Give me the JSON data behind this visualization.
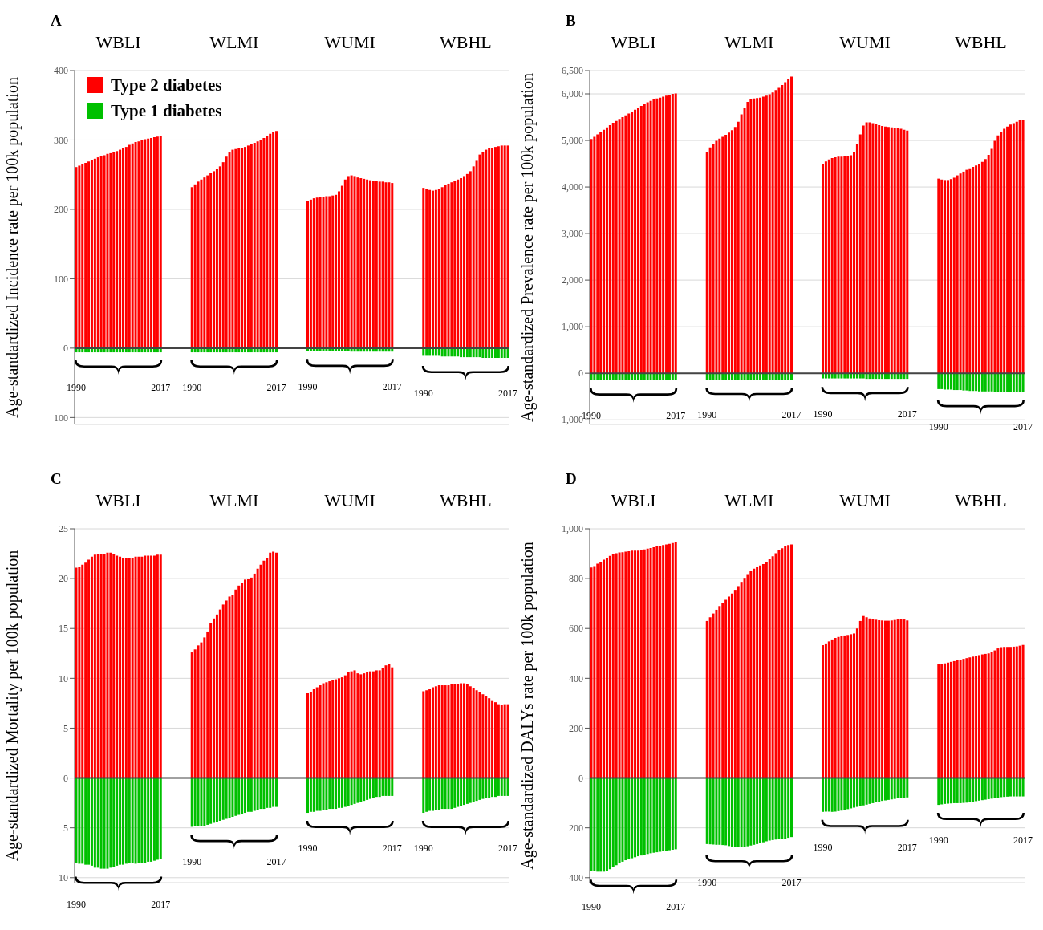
{
  "chart_data": [
    {
      "type": "bar",
      "title": "A",
      "ylabel": "Age-standardized Incidence rate per 100k population",
      "stacked": true,
      "grid": "y",
      "legend": "top left",
      "annotations": [
        "WBLI",
        "WLMI",
        "WUMI",
        "WBHL"
      ],
      "categories": [
        "1990",
        null,
        null,
        null,
        null,
        null,
        null,
        null,
        null,
        null,
        null,
        null,
        null,
        null,
        null,
        null,
        null,
        null,
        null,
        null,
        null,
        null,
        null,
        null,
        null,
        null,
        null,
        "2017",
        null,
        null,
        null,
        null,
        null,
        null,
        null,
        null,
        null,
        "1990",
        null,
        null,
        null,
        null,
        null,
        null,
        null,
        null,
        null,
        null,
        null,
        null,
        null,
        null,
        null,
        null,
        null,
        null,
        null,
        null,
        null,
        null,
        null,
        null,
        null,
        null,
        "2017",
        null,
        null,
        null,
        null,
        null,
        null,
        null,
        null,
        null,
        "1990",
        null,
        null,
        null,
        null,
        null,
        null,
        null,
        null,
        null,
        null,
        null,
        null,
        null,
        null,
        null,
        null,
        null,
        null,
        null,
        null,
        null,
        null,
        null,
        null,
        null,
        null,
        "2017",
        null,
        null,
        null,
        null,
        null,
        null,
        null,
        null,
        null,
        "1990",
        null,
        null,
        null,
        null,
        null,
        null,
        null,
        null,
        null,
        null,
        null,
        null,
        null,
        null,
        null,
        null,
        null,
        null,
        null,
        null,
        null,
        null,
        null,
        null,
        null,
        null,
        "2017"
      ],
      "series": [
        {
          "name": "Type 2 diabetes",
          "color": "#ff0000",
          "values": [
            261,
            263,
            265,
            267,
            269,
            271,
            273,
            275,
            277,
            278,
            280,
            281,
            283,
            284,
            286,
            288,
            290,
            293,
            295,
            297,
            298,
            300,
            301,
            302,
            303,
            304,
            305,
            306,
            null,
            null,
            null,
            null,
            null,
            null,
            null,
            null,
            null,
            232,
            236,
            240,
            243,
            246,
            249,
            252,
            255,
            258,
            262,
            268,
            276,
            282,
            286,
            287,
            288,
            289,
            290,
            292,
            294,
            296,
            298,
            300,
            303,
            306,
            309,
            311,
            313,
            null,
            null,
            null,
            null,
            null,
            null,
            null,
            null,
            null,
            212,
            214,
            216,
            217,
            218,
            218,
            219,
            219,
            220,
            221,
            226,
            234,
            243,
            248,
            249,
            248,
            246,
            245,
            244,
            243,
            242,
            241,
            241,
            240,
            240,
            239,
            239,
            238,
            null,
            null,
            null,
            null,
            null,
            null,
            null,
            null,
            null,
            231,
            229,
            228,
            227,
            228,
            230,
            232,
            235,
            237,
            239,
            241,
            243,
            245,
            248,
            251,
            255,
            262,
            270,
            279,
            283,
            286,
            288,
            289,
            290,
            291,
            292,
            292,
            292
          ]
        },
        {
          "name": "Type 1 diabetes",
          "color": "#00c000",
          "values": [
            -6,
            -6,
            -6,
            -6,
            -6,
            -6,
            -6,
            -6,
            -6,
            -6,
            -6,
            -6,
            -6,
            -6,
            -6,
            -6,
            -6,
            -6,
            -6,
            -6,
            -6,
            -6,
            -6,
            -6,
            -6,
            -6,
            -6,
            -6,
            null,
            null,
            null,
            null,
            null,
            null,
            null,
            null,
            null,
            -6,
            -6,
            -6,
            -6,
            -6,
            -6,
            -6,
            -6,
            -6,
            -6,
            -6,
            -6,
            -6,
            -6,
            -6,
            -6,
            -6,
            -6,
            -6,
            -6,
            -6,
            -6,
            -6,
            -6,
            -6,
            -6,
            -6,
            -6,
            null,
            null,
            null,
            null,
            null,
            null,
            null,
            null,
            null,
            -4,
            -4,
            -4,
            -4,
            -4,
            -4,
            -4,
            -4,
            -4,
            -4,
            -4,
            -4,
            -4,
            -4,
            -5,
            -5,
            -5,
            -5,
            -5,
            -5,
            -5,
            -5,
            -5,
            -5,
            -5,
            -5,
            -5,
            -5,
            null,
            null,
            null,
            null,
            null,
            null,
            null,
            null,
            null,
            -11,
            -11,
            -11,
            -11,
            -11,
            -11,
            -12,
            -12,
            -12,
            -12,
            -12,
            -12,
            -13,
            -13,
            -13,
            -13,
            -13,
            -13,
            -13,
            -14,
            -14,
            -14,
            -14,
            -14,
            -14,
            -14,
            -14,
            -14
          ]
        }
      ],
      "ylim": [
        -110,
        400
      ],
      "yticks": [
        {
          "value": -100,
          "label": "100"
        },
        0,
        100,
        200,
        300,
        400
      ],
      "ref_lines": [
        {
          "axis": "y",
          "value": 0
        }
      ]
    },
    {
      "type": "bar",
      "title": "B",
      "ylabel": "Age-standardized Prevalence rate per 100k population",
      "stacked": true,
      "grid": "y",
      "annotations": [
        "WBLI",
        "WLMI",
        "WUMI",
        "WBHL"
      ],
      "categories": [
        "1990",
        null,
        null,
        null,
        null,
        null,
        null,
        null,
        null,
        null,
        null,
        null,
        null,
        null,
        null,
        null,
        null,
        null,
        null,
        null,
        null,
        null,
        null,
        null,
        null,
        null,
        null,
        "2017",
        null,
        null,
        null,
        null,
        null,
        null,
        null,
        null,
        null,
        "1990",
        null,
        null,
        null,
        null,
        null,
        null,
        null,
        null,
        null,
        null,
        null,
        null,
        null,
        null,
        null,
        null,
        null,
        null,
        null,
        null,
        null,
        null,
        null,
        null,
        null,
        null,
        "2017",
        null,
        null,
        null,
        null,
        null,
        null,
        null,
        null,
        null,
        "1990",
        null,
        null,
        null,
        null,
        null,
        null,
        null,
        null,
        null,
        null,
        null,
        null,
        null,
        null,
        null,
        null,
        null,
        null,
        null,
        null,
        null,
        null,
        null,
        null,
        null,
        null,
        "2017",
        null,
        null,
        null,
        null,
        null,
        null,
        null,
        null,
        null,
        "1990",
        null,
        null,
        null,
        null,
        null,
        null,
        null,
        null,
        null,
        null,
        null,
        null,
        null,
        null,
        null,
        null,
        null,
        null,
        null,
        null,
        null,
        null,
        null,
        null,
        null,
        null,
        "2017"
      ],
      "series": [
        {
          "color": "#ff0000",
          "values": [
            5030,
            5080,
            5130,
            5180,
            5230,
            5280,
            5330,
            5380,
            5420,
            5460,
            5500,
            5540,
            5580,
            5620,
            5660,
            5700,
            5740,
            5780,
            5820,
            5850,
            5880,
            5900,
            5920,
            5940,
            5960,
            5980,
            6000,
            6010,
            null,
            null,
            null,
            null,
            null,
            null,
            null,
            null,
            null,
            4750,
            4850,
            4930,
            4990,
            5040,
            5080,
            5120,
            5170,
            5220,
            5290,
            5400,
            5560,
            5700,
            5830,
            5880,
            5900,
            5910,
            5920,
            5940,
            5960,
            5990,
            6030,
            6080,
            6130,
            6190,
            6250,
            6320,
            6370,
            null,
            null,
            null,
            null,
            null,
            null,
            null,
            null,
            null,
            4500,
            4550,
            4590,
            4620,
            4640,
            4650,
            4650,
            4660,
            4660,
            4680,
            4760,
            4920,
            5130,
            5320,
            5390,
            5390,
            5370,
            5350,
            5330,
            5310,
            5300,
            5290,
            5280,
            5270,
            5260,
            5250,
            5230,
            5210,
            null,
            null,
            null,
            null,
            null,
            null,
            null,
            null,
            null,
            4180,
            4160,
            4150,
            4150,
            4170,
            4200,
            4250,
            4290,
            4330,
            4370,
            4400,
            4430,
            4460,
            4500,
            4540,
            4600,
            4690,
            4820,
            4990,
            5110,
            5190,
            5250,
            5300,
            5340,
            5370,
            5400,
            5430,
            5450
          ]
        },
        {
          "color": "#00c000",
          "values": [
            -150,
            -150,
            -150,
            -150,
            -150,
            -150,
            -150,
            -150,
            -150,
            -150,
            -150,
            -150,
            -150,
            -150,
            -150,
            -150,
            -150,
            -150,
            -150,
            -150,
            -150,
            -150,
            -150,
            -150,
            -150,
            -150,
            -150,
            -150,
            null,
            null,
            null,
            null,
            null,
            null,
            null,
            null,
            null,
            -140,
            -140,
            -140,
            -140,
            -140,
            -140,
            -140,
            -140,
            -140,
            -140,
            -140,
            -140,
            -140,
            -140,
            -140,
            -140,
            -140,
            -140,
            -140,
            -140,
            -140,
            -140,
            -140,
            -140,
            -140,
            -140,
            -140,
            -140,
            null,
            null,
            null,
            null,
            null,
            null,
            null,
            null,
            null,
            -110,
            -110,
            -110,
            -110,
            -110,
            -110,
            -110,
            -110,
            -110,
            -110,
            -110,
            -110,
            -110,
            -110,
            -120,
            -120,
            -120,
            -120,
            -120,
            -120,
            -120,
            -120,
            -120,
            -120,
            -120,
            -120,
            -120,
            -120,
            null,
            null,
            null,
            null,
            null,
            null,
            null,
            null,
            null,
            -340,
            -340,
            -350,
            -350,
            -350,
            -360,
            -360,
            -360,
            -370,
            -370,
            -380,
            -380,
            -380,
            -390,
            -390,
            -390,
            -390,
            -390,
            -400,
            -400,
            -400,
            -400,
            -400,
            -400,
            -400,
            -400,
            -400,
            -400
          ]
        }
      ],
      "ylim": [
        -1100,
        6500
      ],
      "yticks": [
        {
          "value": -1000,
          "label": "1,000"
        },
        0,
        {
          "value": 1000,
          "label": "1,000"
        },
        {
          "value": 2000,
          "label": "2,000"
        },
        {
          "value": 3000,
          "label": "3,000"
        },
        {
          "value": 4000,
          "label": "4,000"
        },
        {
          "value": 5000,
          "label": "5,000"
        },
        {
          "value": 6000,
          "label": "6,000"
        },
        {
          "value": 6500,
          "label": "6,500"
        }
      ],
      "ref_lines": [
        {
          "axis": "y",
          "value": 0
        }
      ]
    },
    {
      "type": "bar",
      "title": "C",
      "ylabel": "Age-standardized Mortality per 100k population",
      "stacked": true,
      "grid": "y",
      "annotations": [
        "WBLI",
        "WLMI",
        "WUMI",
        "WBHL"
      ],
      "categories": [
        "1990",
        null,
        null,
        null,
        null,
        null,
        null,
        null,
        null,
        null,
        null,
        null,
        null,
        null,
        null,
        null,
        null,
        null,
        null,
        null,
        null,
        null,
        null,
        null,
        null,
        null,
        null,
        "2017",
        null,
        null,
        null,
        null,
        null,
        null,
        null,
        null,
        null,
        "1990",
        null,
        null,
        null,
        null,
        null,
        null,
        null,
        null,
        null,
        null,
        null,
        null,
        null,
        null,
        null,
        null,
        null,
        null,
        null,
        null,
        null,
        null,
        null,
        null,
        null,
        null,
        "2017",
        null,
        null,
        null,
        null,
        null,
        null,
        null,
        null,
        null,
        "1990",
        null,
        null,
        null,
        null,
        null,
        null,
        null,
        null,
        null,
        null,
        null,
        null,
        null,
        null,
        null,
        null,
        null,
        null,
        null,
        null,
        null,
        null,
        null,
        null,
        null,
        null,
        "2017",
        null,
        null,
        null,
        null,
        null,
        null,
        null,
        null,
        null,
        "1990",
        null,
        null,
        null,
        null,
        null,
        null,
        null,
        null,
        null,
        null,
        null,
        null,
        null,
        null,
        null,
        null,
        null,
        null,
        null,
        null,
        null,
        null,
        null,
        null,
        null,
        null,
        "2017"
      ],
      "series": [
        {
          "color": "#ff0000",
          "values": [
            21.1,
            21.2,
            21.4,
            21.6,
            21.9,
            22.2,
            22.4,
            22.5,
            22.5,
            22.5,
            22.6,
            22.6,
            22.5,
            22.3,
            22.2,
            22.1,
            22.1,
            22.1,
            22.1,
            22.2,
            22.2,
            22.2,
            22.3,
            22.3,
            22.3,
            22.3,
            22.4,
            22.4,
            null,
            null,
            null,
            null,
            null,
            null,
            null,
            null,
            null,
            12.6,
            12.9,
            13.3,
            13.6,
            14.1,
            14.7,
            15.5,
            16.0,
            16.4,
            16.9,
            17.4,
            17.8,
            18.2,
            18.4,
            18.9,
            19.3,
            19.6,
            19.9,
            20.0,
            20.1,
            20.5,
            21.0,
            21.4,
            21.8,
            22.1,
            22.6,
            22.7,
            22.6,
            null,
            null,
            null,
            null,
            null,
            null,
            null,
            null,
            null,
            8.5,
            8.6,
            8.9,
            9.1,
            9.3,
            9.5,
            9.6,
            9.7,
            9.8,
            9.9,
            10.0,
            10.1,
            10.3,
            10.6,
            10.7,
            10.8,
            10.5,
            10.4,
            10.5,
            10.6,
            10.7,
            10.7,
            10.8,
            10.8,
            11.0,
            11.3,
            11.4,
            11.1,
            null,
            null,
            null,
            null,
            null,
            null,
            null,
            null,
            null,
            8.7,
            8.8,
            8.9,
            9.1,
            9.2,
            9.3,
            9.3,
            9.3,
            9.3,
            9.4,
            9.4,
            9.4,
            9.5,
            9.5,
            9.4,
            9.2,
            9.0,
            8.8,
            8.6,
            8.4,
            8.2,
            8.0,
            7.8,
            7.6,
            7.4,
            7.3,
            7.4,
            7.4
          ]
        },
        {
          "color": "#00c000",
          "values": [
            -8.5,
            -8.6,
            -8.6,
            -8.7,
            -8.7,
            -8.8,
            -9.0,
            -9.0,
            -9.1,
            -9.1,
            -9.1,
            -9.0,
            -8.9,
            -8.8,
            -8.7,
            -8.7,
            -8.6,
            -8.5,
            -8.5,
            -8.6,
            -8.5,
            -8.5,
            -8.5,
            -8.4,
            -8.4,
            -8.3,
            -8.2,
            -8.1,
            null,
            null,
            null,
            null,
            null,
            null,
            null,
            null,
            null,
            -4.9,
            -4.8,
            -4.8,
            -4.8,
            -4.8,
            -4.7,
            -4.6,
            -4.5,
            -4.4,
            -4.3,
            -4.2,
            -4.1,
            -4.0,
            -3.9,
            -3.8,
            -3.7,
            -3.6,
            -3.5,
            -3.4,
            -3.4,
            -3.3,
            -3.2,
            -3.1,
            -3.1,
            -3.0,
            -3.0,
            -2.9,
            -2.9,
            null,
            null,
            null,
            null,
            null,
            null,
            null,
            null,
            null,
            -3.5,
            -3.4,
            -3.4,
            -3.3,
            -3.3,
            -3.2,
            -3.2,
            -3.1,
            -3.1,
            -3.1,
            -3.0,
            -3.0,
            -2.9,
            -2.8,
            -2.7,
            -2.6,
            -2.5,
            -2.4,
            -2.3,
            -2.2,
            -2.1,
            -2.0,
            -1.9,
            -1.9,
            -1.8,
            -1.8,
            -1.8,
            -1.8,
            null,
            null,
            null,
            null,
            null,
            null,
            null,
            null,
            null,
            -3.5,
            -3.4,
            -3.3,
            -3.3,
            -3.2,
            -3.2,
            -3.1,
            -3.1,
            -3.1,
            -3.1,
            -3.0,
            -2.9,
            -2.8,
            -2.7,
            -2.6,
            -2.5,
            -2.4,
            -2.3,
            -2.2,
            -2.1,
            -2.0,
            -2.0,
            -1.9,
            -1.9,
            -1.8,
            -1.8,
            -1.8,
            -1.8
          ]
        }
      ],
      "ylim": [
        -10.5,
        25
      ],
      "yticks": [
        {
          "value": -10,
          "label": "10"
        },
        {
          "value": -5,
          "label": "5"
        },
        0,
        5,
        10,
        15,
        20,
        25
      ],
      "ref_lines": [
        {
          "axis": "y",
          "value": 0
        }
      ]
    },
    {
      "type": "bar",
      "title": "D",
      "ylabel": "Age-standardized DALYs rate per 100k population",
      "stacked": true,
      "grid": "y",
      "annotations": [
        "WBLI",
        "WLMI",
        "WUMI",
        "WBHL"
      ],
      "categories": [
        "1990",
        null,
        null,
        null,
        null,
        null,
        null,
        null,
        null,
        null,
        null,
        null,
        null,
        null,
        null,
        null,
        null,
        null,
        null,
        null,
        null,
        null,
        null,
        null,
        null,
        null,
        null,
        "2017",
        null,
        null,
        null,
        null,
        null,
        null,
        null,
        null,
        null,
        "1990",
        null,
        null,
        null,
        null,
        null,
        null,
        null,
        null,
        null,
        null,
        null,
        null,
        null,
        null,
        null,
        null,
        null,
        null,
        null,
        null,
        null,
        null,
        null,
        null,
        null,
        null,
        "2017",
        null,
        null,
        null,
        null,
        null,
        null,
        null,
        null,
        null,
        "1990",
        null,
        null,
        null,
        null,
        null,
        null,
        null,
        null,
        null,
        null,
        null,
        null,
        null,
        null,
        null,
        null,
        null,
        null,
        null,
        null,
        null,
        null,
        null,
        null,
        null,
        null,
        "2017",
        null,
        null,
        null,
        null,
        null,
        null,
        null,
        null,
        null,
        "1990",
        null,
        null,
        null,
        null,
        null,
        null,
        null,
        null,
        null,
        null,
        null,
        null,
        null,
        null,
        null,
        null,
        null,
        null,
        null,
        null,
        null,
        null,
        null,
        null,
        null,
        null,
        "2017"
      ],
      "series": [
        {
          "color": "#ff0000",
          "values": [
            845,
            850,
            860,
            868,
            876,
            884,
            891,
            897,
            902,
            905,
            906,
            908,
            910,
            912,
            912,
            912,
            914,
            917,
            920,
            923,
            926,
            929,
            932,
            935,
            937,
            940,
            943,
            945,
            null,
            null,
            null,
            null,
            null,
            null,
            null,
            null,
            null,
            630,
            645,
            660,
            675,
            690,
            703,
            715,
            728,
            740,
            755,
            770,
            787,
            803,
            818,
            830,
            840,
            848,
            853,
            858,
            867,
            878,
            890,
            902,
            913,
            922,
            930,
            935,
            937,
            null,
            null,
            null,
            null,
            null,
            null,
            null,
            null,
            null,
            533,
            540,
            548,
            556,
            562,
            566,
            569,
            572,
            574,
            577,
            580,
            600,
            630,
            650,
            645,
            640,
            637,
            635,
            633,
            632,
            631,
            631,
            632,
            634,
            636,
            637,
            636,
            632,
            null,
            null,
            null,
            null,
            null,
            null,
            null,
            null,
            null,
            457,
            458,
            460,
            463,
            466,
            469,
            472,
            475,
            478,
            481,
            484,
            487,
            490,
            493,
            496,
            498,
            500,
            505,
            512,
            520,
            525,
            526,
            526,
            526,
            527,
            528,
            531,
            534
          ]
        },
        {
          "color": "#00c000",
          "values": [
            -375,
            -375,
            -376,
            -376,
            -376,
            -372,
            -366,
            -358,
            -350,
            -342,
            -336,
            -330,
            -326,
            -322,
            -318,
            -314,
            -311,
            -308,
            -305,
            -302,
            -300,
            -298,
            -296,
            -294,
            -292,
            -290,
            -288,
            -286,
            null,
            null,
            null,
            null,
            null,
            null,
            null,
            null,
            null,
            -265,
            -266,
            -267,
            -268,
            -268,
            -269,
            -270,
            -273,
            -275,
            -276,
            -277,
            -277,
            -276,
            -274,
            -271,
            -268,
            -265,
            -262,
            -258,
            -254,
            -251,
            -249,
            -247,
            -246,
            -245,
            -243,
            -240,
            -237,
            null,
            null,
            null,
            null,
            null,
            null,
            null,
            null,
            null,
            -136,
            -135,
            -135,
            -136,
            -135,
            -133,
            -131,
            -128,
            -125,
            -122,
            -119,
            -116,
            -113,
            -110,
            -107,
            -104,
            -101,
            -98,
            -95,
            -92,
            -90,
            -88,
            -86,
            -84,
            -82,
            -81,
            -80,
            -78,
            null,
            null,
            null,
            null,
            null,
            null,
            null,
            null,
            null,
            -108,
            -106,
            -104,
            -103,
            -102,
            -101,
            -101,
            -101,
            -100,
            -99,
            -97,
            -95,
            -93,
            -91,
            -89,
            -87,
            -85,
            -83,
            -81,
            -79,
            -77,
            -76,
            -75,
            -74,
            -74,
            -74,
            -74,
            -74
          ]
        }
      ],
      "ylim": [
        -420,
        1000
      ],
      "yticks": [
        {
          "value": -400,
          "label": "400"
        },
        {
          "value": -200,
          "label": "200"
        },
        0,
        200,
        400,
        600,
        800,
        {
          "value": 1000,
          "label": "1,000"
        }
      ],
      "ref_lines": [
        {
          "axis": "y",
          "value": 0
        }
      ]
    }
  ]
}
